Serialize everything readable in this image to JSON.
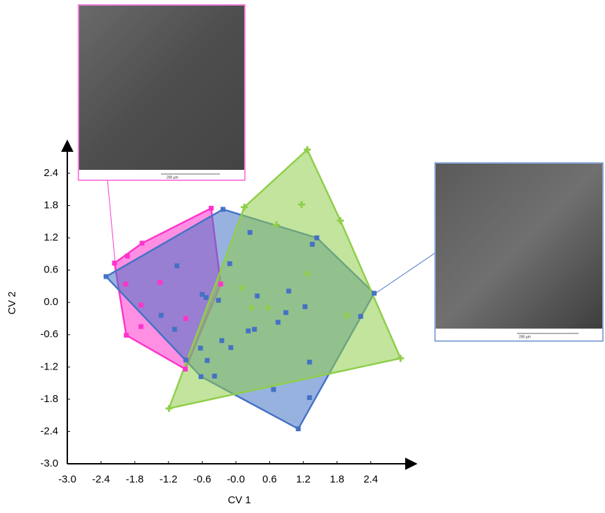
{
  "chart_data": {
    "type": "scatter",
    "x_label": "CV 1",
    "y_label": "CV 2",
    "xlim": [
      -3.0,
      3.2
    ],
    "ylim": [
      -3.0,
      3.0
    ],
    "xticks": [
      {
        "value": -3.0,
        "label": "-3.0"
      },
      -2.4,
      -1.8,
      -1.2,
      -0.6,
      {
        "value": 0,
        "label": "-0.0"
      },
      0.6,
      1.2,
      1.8,
      2.4
    ],
    "yticks": [
      {
        "value": -3.0,
        "label": "-3.0"
      },
      -2.4,
      -1.8,
      -1.2,
      -0.6,
      {
        "value": 0,
        "label": "0.0"
      },
      0.6,
      1.2,
      1.8,
      2.4
    ],
    "hull": true,
    "annotations": [
      "200 µm",
      "200 µm"
    ],
    "series": [
      {
        "color": "#ff33cc",
        "marker": "square",
        "x": [
          -2.16,
          -1.93,
          -1.67,
          -1.96,
          -1.35,
          -1.69,
          -1.69,
          -1.95,
          -0.89,
          -0.9,
          -0.44,
          -0.27
        ],
        "values": [
          0.73,
          0.86,
          1.1,
          0.34,
          0.37,
          -0.05,
          -0.45,
          -0.61,
          -0.3,
          -1.24,
          1.75,
          0.34
        ]
      },
      {
        "color": "#4472c4",
        "marker": "square",
        "x": [
          -2.31,
          -0.23,
          0.25,
          1.44,
          1.36,
          -1.05,
          -0.11,
          -0.6,
          -0.53,
          -0.31,
          0.38,
          0.94,
          1.23,
          -1.33,
          -1.09,
          0.75,
          0.89,
          0.33,
          2.22,
          2.46,
          -0.63,
          -0.25,
          -0.09,
          0.22,
          -0.51,
          1.31,
          -0.62,
          -0.38,
          0.67,
          1.31,
          1.11,
          -0.89
        ],
        "values": [
          0.48,
          1.73,
          1.3,
          1.2,
          1.08,
          0.68,
          0.72,
          0.15,
          0.09,
          0.04,
          0.12,
          0.21,
          -0.08,
          -0.24,
          -0.5,
          -0.37,
          -0.19,
          -0.5,
          -0.26,
          0.17,
          -0.85,
          -0.71,
          -0.84,
          -0.53,
          -1.08,
          -1.11,
          -1.38,
          -1.37,
          -1.62,
          -1.77,
          -2.35,
          -1.07
        ]
      },
      {
        "color": "#8fce4a",
        "marker": "plus",
        "x": [
          1.27,
          0.15,
          1.17,
          1.86,
          0.72,
          1.27,
          0.11,
          0.28,
          0.57,
          1.98,
          2.93,
          -1.19
        ],
        "values": [
          2.84,
          1.77,
          1.82,
          1.52,
          1.44,
          0.53,
          0.27,
          -0.1,
          -0.1,
          -0.24,
          -1.04,
          -1.97
        ]
      }
    ]
  }
}
